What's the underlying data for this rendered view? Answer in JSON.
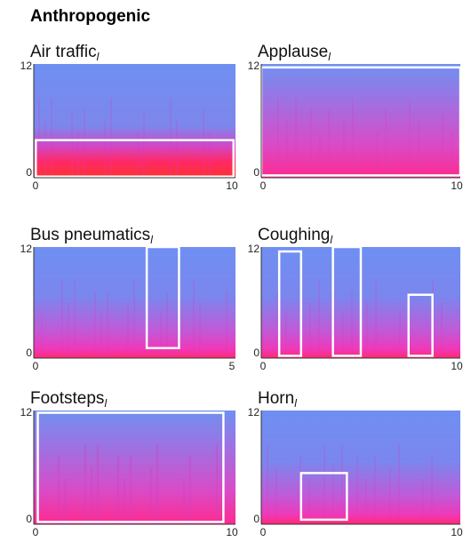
{
  "header": {
    "title": "Anthropogenic"
  },
  "panels": [
    {
      "title": "Air traffic",
      "subscript": "l",
      "yticks": [
        "12",
        "0"
      ],
      "xticks": [
        "0",
        "10"
      ]
    },
    {
      "title": "Applause",
      "subscript": "l",
      "yticks": [
        "12",
        "0"
      ],
      "xticks": [
        "0",
        "10"
      ]
    },
    {
      "title": "Bus pneumatics",
      "subscript": "l",
      "yticks": [
        "12",
        "0"
      ],
      "xticks": [
        "0",
        "5"
      ]
    },
    {
      "title": "Coughing",
      "subscript": "l",
      "yticks": [
        "12",
        "0"
      ],
      "xticks": [
        "0",
        "10"
      ]
    },
    {
      "title": "Footsteps",
      "subscript": "l",
      "yticks": [
        "12",
        "0"
      ],
      "xticks": [
        "0",
        "10"
      ]
    },
    {
      "title": "Horn",
      "subscript": "l",
      "yticks": [
        "12",
        "0"
      ],
      "xticks": [
        "0",
        "10"
      ]
    }
  ]
}
